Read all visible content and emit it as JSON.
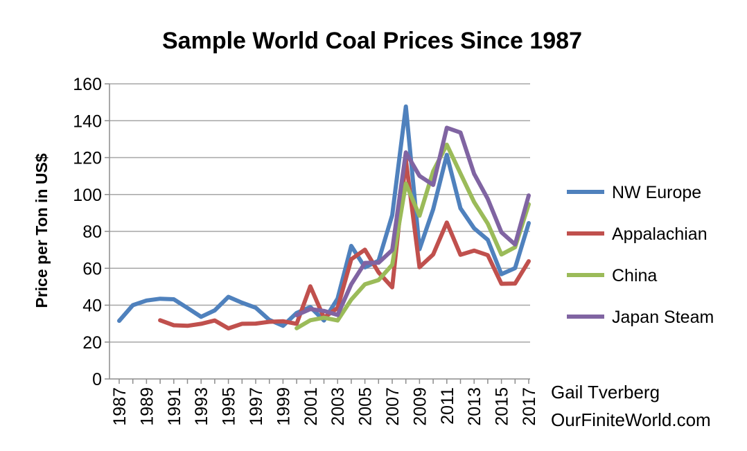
{
  "chart_data": {
    "type": "line",
    "title": "Sample World Coal Prices Since 1987",
    "xlabel": "",
    "ylabel": "Price per Ton in US$",
    "ylim": [
      0,
      160
    ],
    "yticks": [
      0,
      20,
      40,
      60,
      80,
      100,
      120,
      140,
      160
    ],
    "grid": true,
    "legend_position": "right",
    "x": [
      1987,
      1988,
      1989,
      1990,
      1991,
      1992,
      1993,
      1994,
      1995,
      1996,
      1997,
      1998,
      1999,
      2000,
      2001,
      2002,
      2003,
      2004,
      2005,
      2006,
      2007,
      2008,
      2009,
      2010,
      2011,
      2012,
      2013,
      2014,
      2015,
      2016,
      2017
    ],
    "xtick_labels": [
      "1987",
      "1989",
      "1991",
      "1993",
      "1995",
      "1997",
      "1999",
      "2001",
      "2003",
      "2005",
      "2007",
      "2009",
      "2011",
      "2013",
      "2015",
      "2017"
    ],
    "series": [
      {
        "name": "NW Europe",
        "color": "#4f81bd",
        "values": [
          31.5,
          40,
          42.5,
          43.5,
          43.2,
          38.5,
          33.7,
          37.2,
          44.5,
          41.3,
          38.6,
          32,
          28.8,
          35.8,
          39,
          31.7,
          43.6,
          72.1,
          60.5,
          64.1,
          88.8,
          147.7,
          70.4,
          92,
          121.5,
          92.5,
          81.7,
          75.4,
          56.8,
          60.1,
          84.5
        ]
      },
      {
        "name": "Appalachian",
        "color": "#c0504d",
        "values": [
          null,
          null,
          null,
          31.8,
          29.1,
          28.8,
          29.9,
          31.7,
          27.4,
          29.9,
          30,
          31,
          31.3,
          29.9,
          50.2,
          33.2,
          38.5,
          64.9,
          70.1,
          57.8,
          49.7,
          118.8,
          60.6,
          67.5,
          84.8,
          67.3,
          69.6,
          67.1,
          51.6,
          51.7,
          63.8
        ]
      },
      {
        "name": "China",
        "color": "#9bbb59",
        "values": [
          null,
          null,
          null,
          null,
          null,
          null,
          null,
          null,
          null,
          null,
          null,
          null,
          null,
          27.5,
          31.8,
          33.2,
          31.7,
          43,
          51.3,
          53.6,
          61.9,
          105.9,
          88.5,
          112.6,
          127,
          111.4,
          95.9,
          84.2,
          67.5,
          71.4,
          94.7
        ]
      },
      {
        "name": "Japan Steam",
        "color": "#8064a2",
        "values": [
          null,
          null,
          null,
          null,
          null,
          null,
          null,
          null,
          null,
          null,
          null,
          null,
          null,
          34.6,
          37.9,
          36.9,
          34.7,
          51.3,
          62.9,
          63,
          69.9,
          122.8,
          110.1,
          105.2,
          136.2,
          133.6,
          111.2,
          97.6,
          79.5,
          72.9,
          99.5
        ]
      }
    ]
  },
  "credit": {
    "line1": "Gail Tverberg",
    "line2": "OurFiniteWorld.com"
  }
}
